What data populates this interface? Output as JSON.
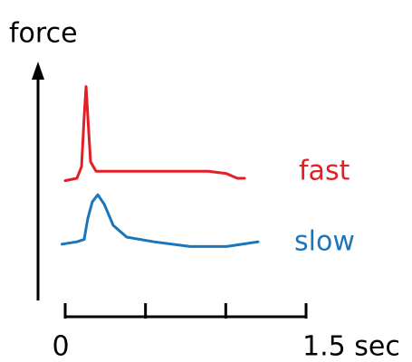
{
  "chart_data": {
    "type": "line",
    "y_label": "force",
    "xlim": [
      0,
      1.5
    ],
    "ylim": [
      0,
      1
    ],
    "xticks": [
      {
        "value": 0,
        "label": "0"
      },
      {
        "value": 0.5,
        "label": null
      },
      {
        "value": 1,
        "label": null
      },
      {
        "value": 1.5,
        "label": "1.5 sec"
      }
    ],
    "series": [
      {
        "name": "fast",
        "color": "#e31e24",
        "x": [
          0,
          0.073,
          0.102,
          0.118,
          0.13,
          0.141,
          0.158,
          0.192,
          0.327,
          0.609,
          0.891,
          1.004,
          1.072,
          1.117
        ],
        "values": [
          0.54,
          0.55,
          0.6,
          0.81,
          0.94,
          0.81,
          0.62,
          0.58,
          0.58,
          0.58,
          0.58,
          0.57,
          0.55,
          0.55
        ]
      },
      {
        "name": "slow",
        "color": "#1a75bb",
        "x": [
          -0.02,
          0.073,
          0.118,
          0.141,
          0.169,
          0.203,
          0.243,
          0.299,
          0.383,
          0.553,
          0.778,
          1.004,
          1.201
        ],
        "values": [
          0.27,
          0.28,
          0.29,
          0.38,
          0.45,
          0.48,
          0.44,
          0.35,
          0.3,
          0.28,
          0.26,
          0.26,
          0.28
        ]
      }
    ]
  }
}
